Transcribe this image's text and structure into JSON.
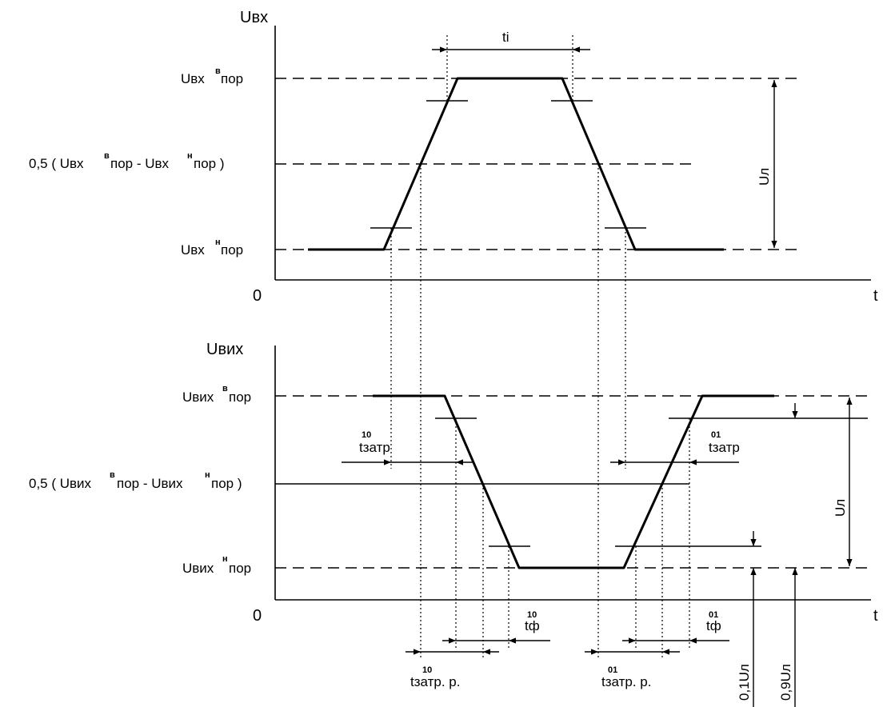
{
  "top": {
    "y_axis": "Uвх",
    "t_label": "t",
    "origin": "0",
    "pulse_width": "ti",
    "lvl_high_pre": "Uвх",
    "lvl_high_sup": "в",
    "lvl_high_post": "пор",
    "lvl_mid_pre": "0,5 (  Uвх",
    "lvl_mid_sup1": "в",
    "lvl_mid_mid": "пор  -  Uвх",
    "lvl_mid_sup2": "н",
    "lvl_mid_post": "пор  )",
    "lvl_low_pre": "Uвх",
    "lvl_low_sup": "н",
    "lvl_low_post": "пор",
    "amplitude": "Uл"
  },
  "bottom": {
    "y_axis": "Uвих",
    "t_label": "t",
    "origin": "0",
    "lvl_high_pre": "Uвих",
    "lvl_high_sup": "в",
    "lvl_high_post": "пор",
    "lvl_mid_pre": "0,5 (  Uвих",
    "lvl_mid_sup1": "в",
    "lvl_mid_mid": "пор   -  Uвих",
    "lvl_mid_sup2": "н",
    "lvl_mid_post": "пор    )",
    "lvl_low_pre": "Uвих",
    "lvl_low_sup": "н",
    "lvl_low_post": "пор",
    "amplitude": "Uл",
    "tzatr_10_sup": "10",
    "tzatr_10": "tзатр",
    "tzatr_01_sup": "01",
    "tzatr_01": "tзатр",
    "tf_10_sup": "10",
    "tf_10": "tф",
    "tf_01_sup": "01",
    "tf_01": "tф",
    "tzatr_r_10_sup": "10",
    "tzatr_r_10": "tзатр. р.",
    "tzatr_r_01_sup": "01",
    "tzatr_r_01": "tзатр. р.",
    "level_01": "0,1Uл",
    "level_09": "0,9Uл"
  }
}
